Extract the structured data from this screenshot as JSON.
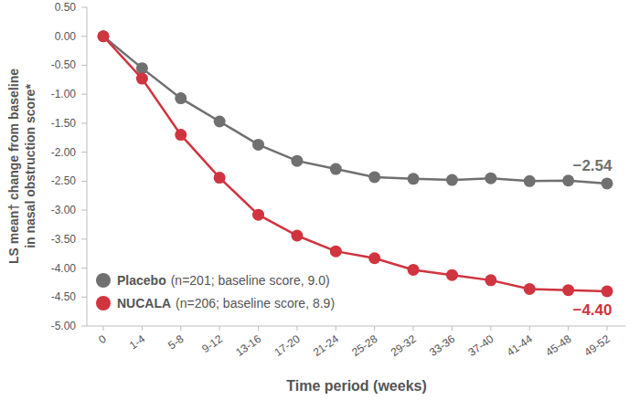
{
  "chart_data": {
    "type": "line",
    "x_label": "Time period (weeks)",
    "y_label": "LS mean† change from baseline in nasal obstruction score*",
    "categories": [
      "0",
      "1-4",
      "5-8",
      "9-12",
      "13-16",
      "17-20",
      "21-24",
      "25-28",
      "29-32",
      "33-36",
      "37-40",
      "41-44",
      "45-48",
      "49-52"
    ],
    "series": [
      {
        "name": "Placebo",
        "description": "(n=201; baseline score, 9.0)",
        "color": "#707070",
        "marker": "circle",
        "values": [
          0,
          -0.55,
          -1.07,
          -1.47,
          -1.87,
          -2.15,
          -2.29,
          -2.43,
          -2.46,
          -2.48,
          -2.45,
          -2.5,
          -2.49,
          -2.54
        ]
      },
      {
        "name": "NUCALA",
        "description": "(n=206; baseline score, 8.9)",
        "color": "#d0343f",
        "marker": "circle",
        "values": [
          0,
          -0.73,
          -1.7,
          -2.44,
          -3.08,
          -3.44,
          -3.71,
          -3.83,
          -4.03,
          -4.12,
          -4.21,
          -4.36,
          -4.38,
          -4.4
        ]
      }
    ],
    "annotations": [
      {
        "text": "−2.54",
        "series": 0,
        "index": 13
      },
      {
        "text": "−4.40",
        "series": 1,
        "index": 13
      }
    ],
    "ylim": [
      -5.0,
      0.5
    ],
    "yticks": [
      {
        "value": 0.5,
        "label": "0.50"
      },
      {
        "value": 0,
        "label": "0.00"
      },
      {
        "value": -0.5,
        "label": "-0.50"
      },
      {
        "value": -1.0,
        "label": "-1.00"
      },
      {
        "value": -1.5,
        "label": "-1.50"
      },
      {
        "value": -2.0,
        "label": "-2.00"
      },
      {
        "value": -2.5,
        "label": "-2.50"
      },
      {
        "value": -3.0,
        "label": "-3.00"
      },
      {
        "value": -3.5,
        "label": "-3.50"
      },
      {
        "value": -4.0,
        "label": "-4.00"
      },
      {
        "value": -4.5,
        "label": "-4.50"
      },
      {
        "value": -5.0,
        "label": "-5.00"
      }
    ],
    "grid": false,
    "legend": "lower left"
  }
}
